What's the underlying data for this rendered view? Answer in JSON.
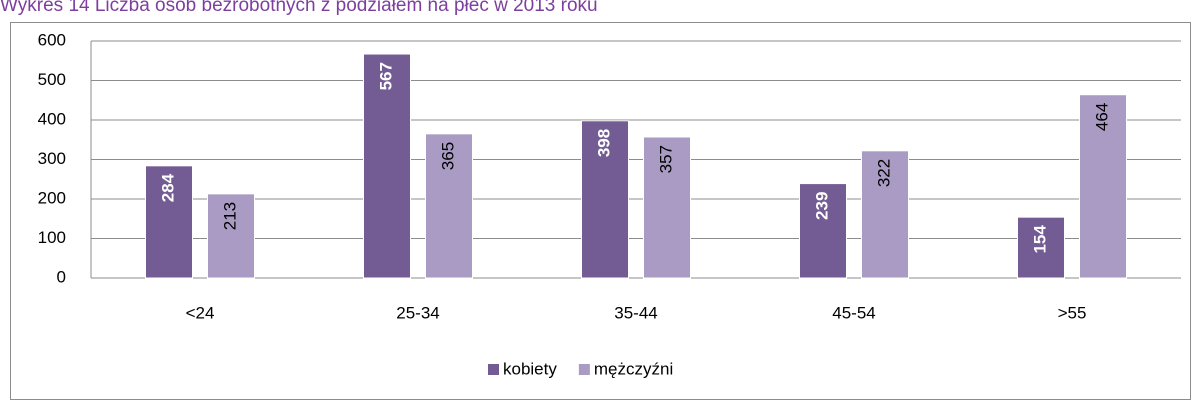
{
  "chart_data": {
    "type": "bar",
    "title": "Wykres 14 Liczba osób bezrobotnych z podziałem na płeć w 2013 roku",
    "categories": [
      "<24",
      "25-34",
      "35-44",
      "45-54",
      ">55"
    ],
    "series": [
      {
        "name": "kobiety",
        "color": "#735b93",
        "values": [
          284,
          567,
          398,
          239,
          154
        ]
      },
      {
        "name": "mężczyźni",
        "color": "#a99bc3",
        "values": [
          213,
          365,
          357,
          322,
          464
        ]
      }
    ],
    "ylim": [
      0,
      600
    ],
    "yticks": [
      0,
      100,
      200,
      300,
      400,
      500,
      600
    ],
    "grid": true,
    "legend": "bottom"
  }
}
